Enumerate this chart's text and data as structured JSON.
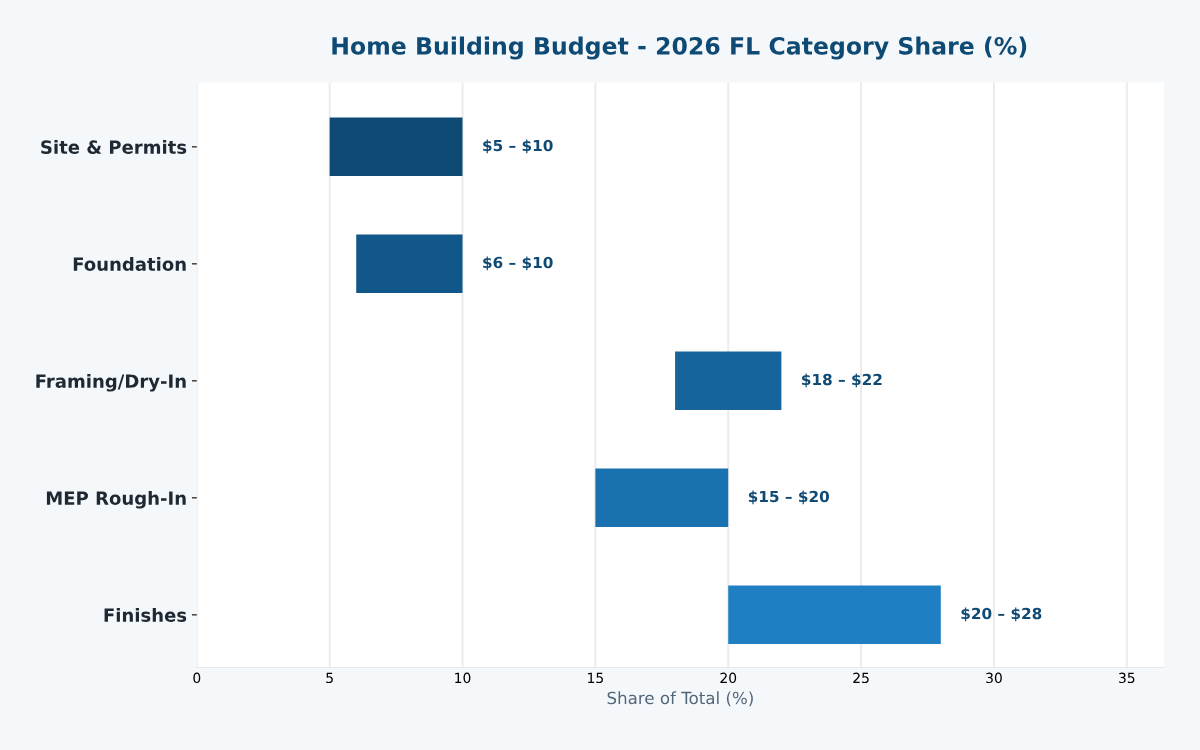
{
  "chart_data": {
    "type": "bar",
    "orientation": "horizontal",
    "title": "Home Building Budget - 2026 FL Category Share (%)",
    "xlabel": "Share of Total (%)",
    "categories": [
      "Site & Permits",
      "Foundation",
      "Framing/Dry-In",
      "MEP Rough-In",
      "Finishes"
    ],
    "base": [
      5,
      6,
      18,
      15,
      20
    ],
    "values": [
      5,
      4,
      4,
      5,
      8
    ],
    "colors": [
      "#0f4a75",
      "#115789",
      "#16649c",
      "#1a71b0",
      "#1f7fc2"
    ],
    "annotations": [
      {
        "text": "$5 – $10",
        "x": 10,
        "y": "Site & Permits"
      },
      {
        "text": "$6 – $10",
        "x": 10,
        "y": "Foundation"
      },
      {
        "text": "$18 – $22",
        "x": 22,
        "y": "Framing/Dry-In"
      },
      {
        "text": "$15 – $20",
        "x": 20,
        "y": "MEP Rough-In"
      },
      {
        "text": "$20 – $28",
        "x": 28,
        "y": "Finishes"
      }
    ],
    "xlim": [
      0,
      36.4
    ],
    "xticks": [
      0,
      5,
      10,
      15,
      20,
      25,
      30,
      35
    ],
    "grid": "x"
  }
}
